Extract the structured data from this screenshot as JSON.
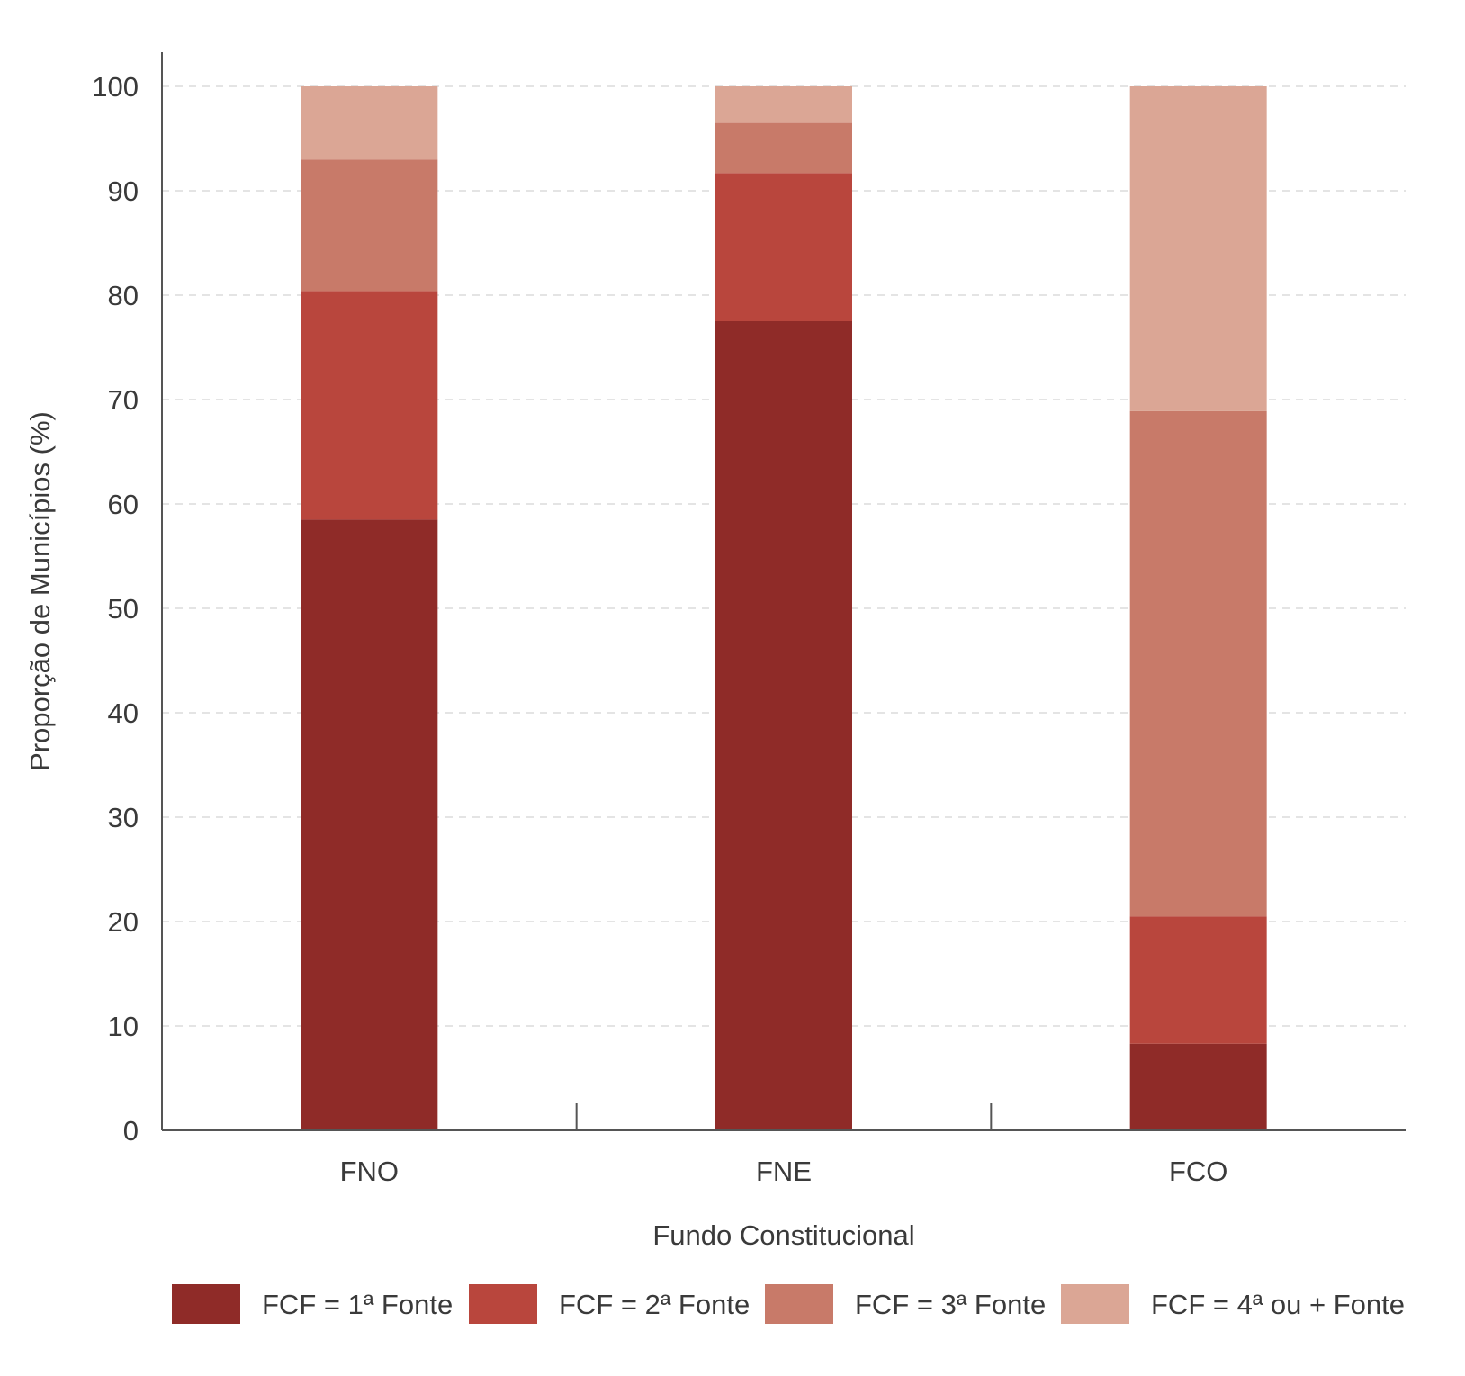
{
  "chart_data": {
    "type": "bar",
    "stacked": true,
    "categories": [
      "FNO",
      "FNE",
      "FCO"
    ],
    "series": [
      {
        "name": "FCF = 1ª Fonte",
        "values": [
          58.5,
          77.5,
          8.3
        ],
        "color": "#8f2b28"
      },
      {
        "name": "FCF = 2ª Fonte",
        "values": [
          21.9,
          14.2,
          12.2
        ],
        "color": "#b9463d"
      },
      {
        "name": "FCF = 3ª Fonte",
        "values": [
          12.6,
          4.8,
          48.4
        ],
        "color": "#c87a69"
      },
      {
        "name": "FCF = 4ª ou + Fonte",
        "values": [
          7.0,
          3.5,
          31.1
        ],
        "color": "#dba695"
      }
    ],
    "xlabel": "Fundo Constitucional",
    "ylabel": "Proporção de Municípios (%)",
    "ylim": [
      0,
      100
    ],
    "yticks": [
      0,
      10,
      20,
      30,
      40,
      50,
      60,
      70,
      80,
      90,
      100
    ],
    "grid": true,
    "legend_position": "bottom"
  }
}
